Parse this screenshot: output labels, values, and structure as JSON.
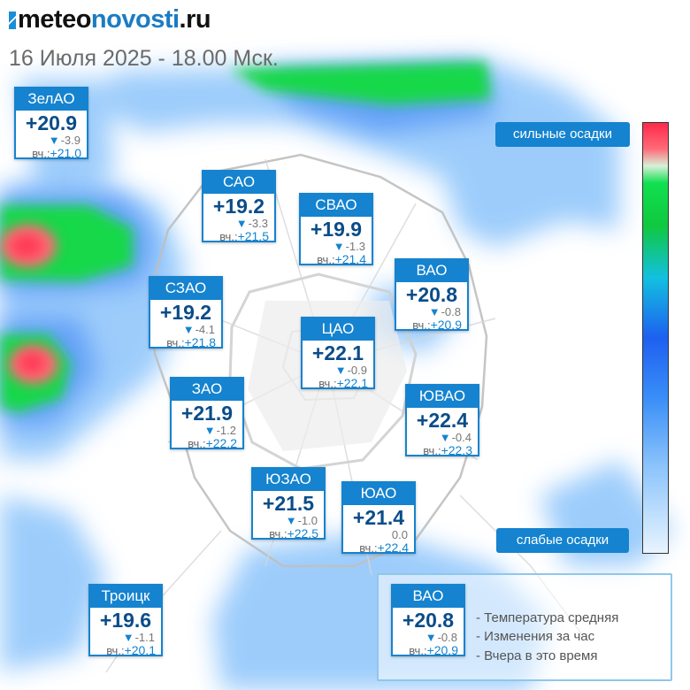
{
  "header": {
    "logo": {
      "part1": "meteo",
      "part2": "novosti",
      "part3": ".ru"
    },
    "date": "16 Июля 2025 - 18.00 Мск."
  },
  "districts": [
    {
      "name": "ЗелАО",
      "temp": "+20.9",
      "change": "-3.9",
      "yesterday_label": "вч.:",
      "yesterday": "+21.0"
    },
    {
      "name": "САО",
      "temp": "+19.2",
      "change": "-3.3",
      "yesterday_label": "вч.:",
      "yesterday": "+21.5"
    },
    {
      "name": "СВАО",
      "temp": "+19.9",
      "change": "-1.3",
      "yesterday_label": "вч.:",
      "yesterday": "+21.4"
    },
    {
      "name": "ВАО",
      "temp": "+20.8",
      "change": "-0.8",
      "yesterday_label": "вч.:",
      "yesterday": "+20.9"
    },
    {
      "name": "СЗАО",
      "temp": "+19.2",
      "change": "-4.1",
      "yesterday_label": "вч.:",
      "yesterday": "+21.8"
    },
    {
      "name": "ЦАО",
      "temp": "+22.1",
      "change": "-0.9",
      "yesterday_label": "вч.:",
      "yesterday": "+22.1"
    },
    {
      "name": "ЗАО",
      "temp": "+21.9",
      "change": "-1.2",
      "yesterday_label": "вч.:",
      "yesterday": "+22.2"
    },
    {
      "name": "ЮВАО",
      "temp": "+22.4",
      "change": "-0.4",
      "yesterday_label": "вч.:",
      "yesterday": "+22.3"
    },
    {
      "name": "ЮЗАО",
      "temp": "+21.5",
      "change": "-1.0",
      "yesterday_label": "вч.:",
      "yesterday": "+22.5"
    },
    {
      "name": "ЮАО",
      "temp": "+21.4",
      "change": "0.0",
      "yesterday_label": "вч.:",
      "yesterday": "+22.4"
    },
    {
      "name": "Троицк",
      "temp": "+19.6",
      "change": "-1.1",
      "yesterday_label": "вч.:",
      "yesterday": "+20.1"
    }
  ],
  "legend": {
    "sample": {
      "name": "ВАО",
      "temp": "+20.8",
      "change": "-0.8",
      "yesterday_label": "вч.:",
      "yesterday": "+20.9"
    },
    "line1": "- Температура средняя",
    "line2": "- Изменения за час",
    "line3": "- Вчера в это время"
  },
  "scale": {
    "top_label": "сильные осадки",
    "bottom_label": "слабые осадки"
  },
  "colors": {
    "accent": "#1583cf",
    "heavy_precip": "#ff3b55",
    "medium_precip": "#12d84a",
    "light_precip": "#8cc4fb"
  },
  "icons": {
    "decrease": "down-triangle-icon",
    "logo_mark": "double-chevron-icon"
  }
}
